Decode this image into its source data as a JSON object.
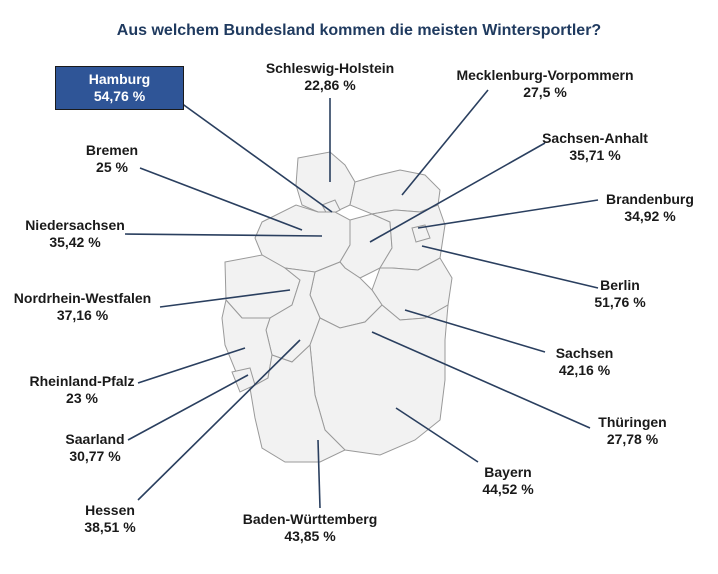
{
  "colors": {
    "title": "#1f3a5f",
    "leader": "#2a3f5f",
    "highlight": "#2f5597",
    "map_fill": "#f2f2f2",
    "map_stroke": "#9a9a9a"
  },
  "chart_data": {
    "type": "map",
    "title": "Aus welchem Bundesland kommen die meisten Wintersportler?",
    "unit": "%",
    "highlight": "Hamburg",
    "states": [
      {
        "name": "Hamburg",
        "value": 54.76,
        "label": "54,76 %"
      },
      {
        "name": "Schleswig-Holstein",
        "value": 22.86,
        "label": "22,86 %"
      },
      {
        "name": "Mecklenburg-Vorpommern",
        "value": 27.5,
        "label": "27,5 %"
      },
      {
        "name": "Bremen",
        "value": 25,
        "label": "25 %"
      },
      {
        "name": "Sachsen-Anhalt",
        "value": 35.71,
        "label": "35,71 %"
      },
      {
        "name": "Brandenburg",
        "value": 34.92,
        "label": "34,92 %"
      },
      {
        "name": "Niedersachsen",
        "value": 35.42,
        "label": "35,42 %"
      },
      {
        "name": "Berlin",
        "value": 51.76,
        "label": "51,76 %"
      },
      {
        "name": "Nordrhein-Westfalen",
        "value": 37.16,
        "label": "37,16 %"
      },
      {
        "name": "Sachsen",
        "value": 42.16,
        "label": "42,16 %"
      },
      {
        "name": "Rheinland-Pfalz",
        "value": 23,
        "label": "23 %"
      },
      {
        "name": "Thüringen",
        "value": 27.78,
        "label": "27,78 %"
      },
      {
        "name": "Saarland",
        "value": 30.77,
        "label": "30,77 %"
      },
      {
        "name": "Bayern",
        "value": 44.52,
        "label": "44,52 %"
      },
      {
        "name": "Hessen",
        "value": 38.51,
        "label": "38,51 %"
      },
      {
        "name": "Baden-Württemberg",
        "value": 43.85,
        "label": "43,85 %"
      }
    ]
  }
}
